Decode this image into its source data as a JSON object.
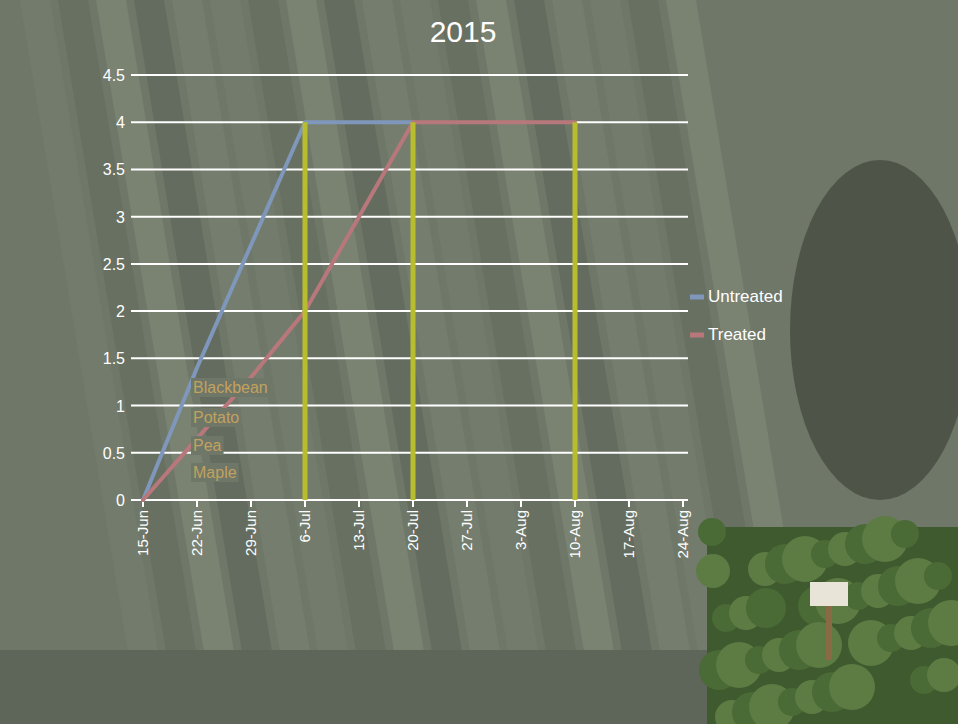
{
  "chart_data": {
    "type": "line",
    "title": "2015",
    "x": [
      "15-Jun",
      "22-Jun",
      "29-Jun",
      "6-Jul",
      "13-Jul",
      "20-Jul",
      "27-Jul",
      "3-Aug",
      "10-Aug",
      "17-Aug",
      "24-Aug"
    ],
    "series": [
      {
        "name": "Untreated",
        "color": "#7f97bb",
        "values": [
          0,
          1.4,
          2.7,
          4,
          4,
          4,
          null,
          null,
          null,
          null,
          null
        ]
      },
      {
        "name": "Treated",
        "color": "#b8787b",
        "values": [
          0,
          0.65,
          1.3,
          2,
          3,
          4,
          4,
          4,
          4,
          null,
          null
        ]
      }
    ],
    "ylim": [
      0,
      4.5
    ],
    "yticks": [
      0,
      0.5,
      1,
      1.5,
      2,
      2.5,
      3,
      3.5,
      4,
      4.5
    ],
    "grid": true,
    "legend": "right",
    "vertical_lines": {
      "x": [
        "6-Jul",
        "20-Jul",
        "10-Aug"
      ],
      "values": [
        4,
        4,
        4
      ],
      "color": "#b8bd2e"
    },
    "annotations": {
      "texts": [
        "Blackbean",
        "Potato",
        "Pea",
        "Maple"
      ],
      "color": "#c2a25e"
    }
  }
}
